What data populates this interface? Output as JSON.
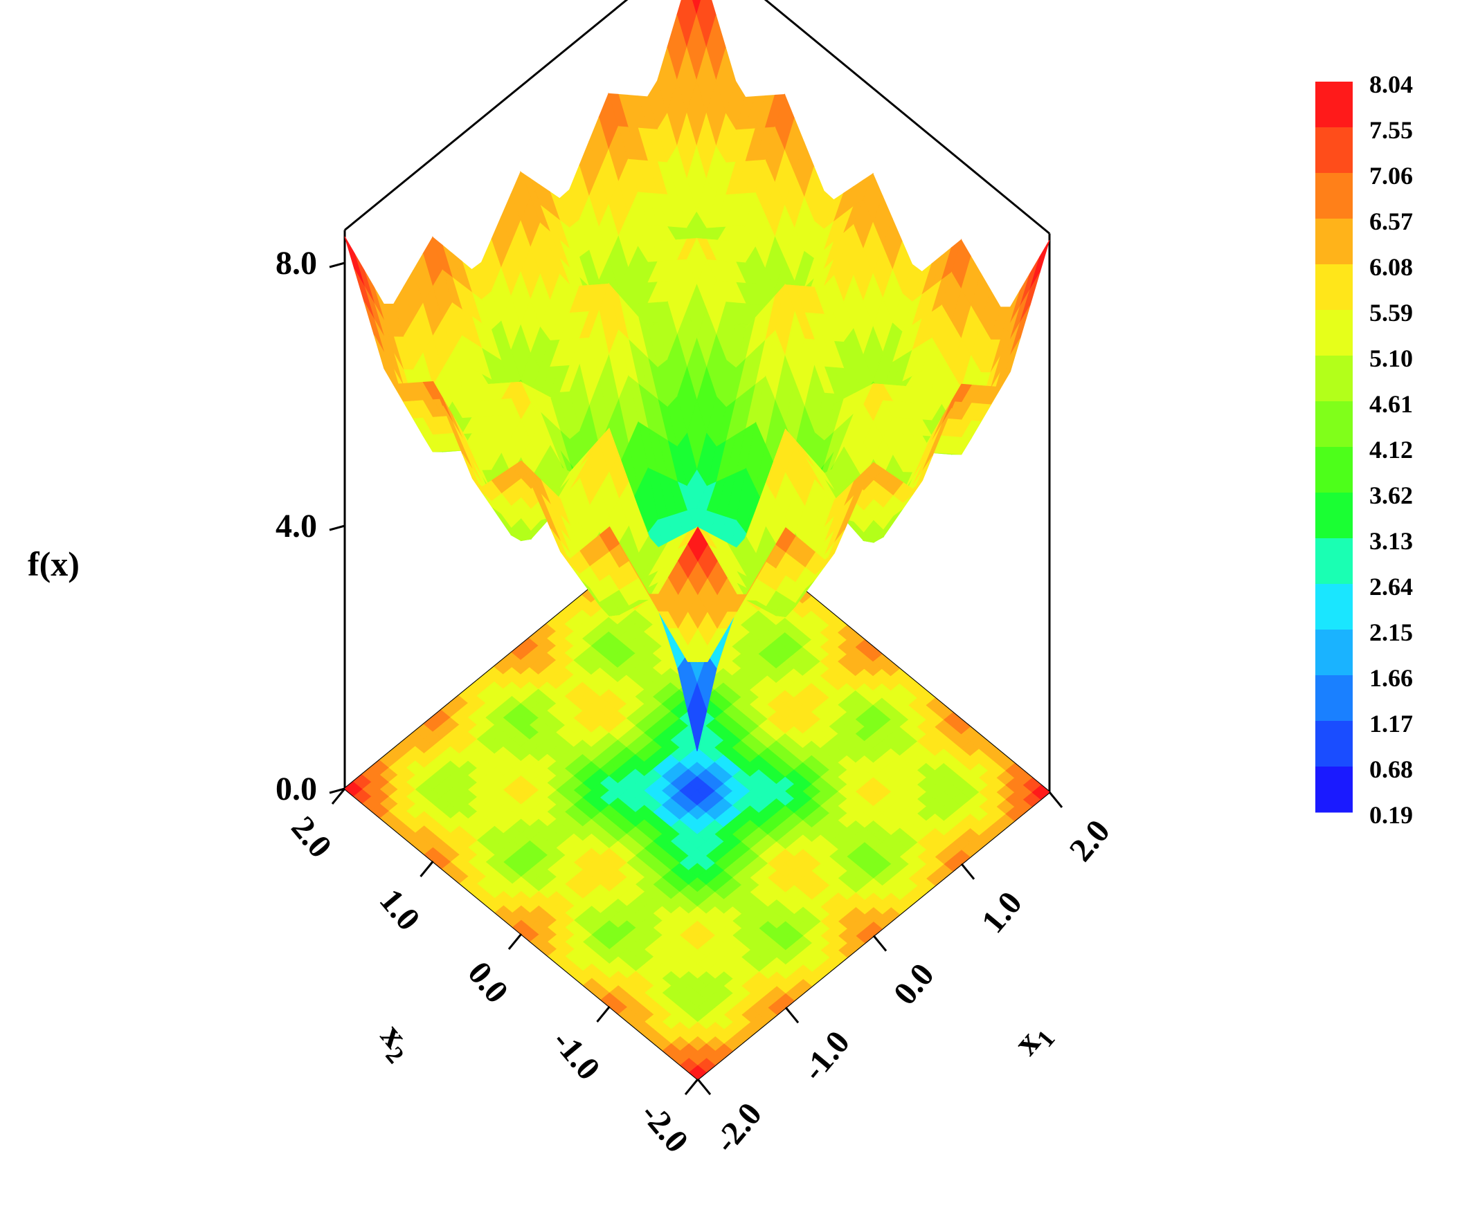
{
  "chart_data": {
    "type": "surface",
    "zlabel": "f(x)",
    "xlabel": "x",
    "xlabel_sub": "1",
    "ylabel": "x",
    "ylabel_sub": "2",
    "x1_range": [
      -2.0,
      2.0
    ],
    "x2_range": [
      -2.0,
      2.0
    ],
    "zlim": [
      0.0,
      8.0
    ],
    "x1_ticks": [
      "-2.0",
      "-1.0",
      "0.0",
      "1.0",
      "2.0"
    ],
    "x2_ticks": [
      "-2.0",
      "-1.0",
      "0.0",
      "1.0",
      "2.0"
    ],
    "z_ticks": [
      "0.0",
      "4.0",
      "8.0"
    ],
    "colorbar_levels": [
      "8.04",
      "7.55",
      "7.06",
      "6.57",
      "6.08",
      "5.59",
      "5.10",
      "4.61",
      "4.12",
      "3.62",
      "3.13",
      "2.64",
      "2.15",
      "1.66",
      "1.17",
      "0.68",
      "0.19"
    ],
    "colorbar_colors": [
      "#ff1a1a",
      "#ff4d1a",
      "#ff8019",
      "#ffb31a",
      "#ffe61a",
      "#e6ff1a",
      "#b3ff1a",
      "#80ff1a",
      "#4dff1a",
      "#1aff33",
      "#1affb3",
      "#1ae6ff",
      "#1ab3ff",
      "#1a80ff",
      "#1a4dff",
      "#1a1aff"
    ],
    "surface_grid": {
      "x1": [
        -2.0,
        -1.5,
        -1.0,
        -0.5,
        0.0,
        0.5,
        1.0,
        1.5,
        2.0
      ],
      "x2": [
        -2.0,
        -1.5,
        -1.0,
        -0.5,
        0.0,
        0.5,
        1.0,
        1.5,
        2.0
      ],
      "z": [
        [
          8.0,
          6.3,
          6.9,
          5.8,
          6.8,
          5.8,
          6.9,
          6.3,
          8.0
        ],
        [
          6.3,
          4.6,
          5.2,
          4.3,
          5.6,
          4.3,
          5.2,
          4.6,
          6.3
        ],
        [
          6.9,
          5.2,
          5.8,
          4.9,
          6.2,
          4.9,
          5.8,
          5.2,
          6.9
        ],
        [
          5.8,
          4.3,
          4.9,
          2.8,
          3.6,
          2.8,
          4.9,
          4.3,
          5.8
        ],
        [
          6.8,
          5.6,
          6.2,
          3.6,
          0.2,
          3.6,
          6.2,
          5.6,
          6.8
        ],
        [
          5.8,
          4.3,
          4.9,
          2.8,
          3.6,
          2.8,
          4.9,
          4.3,
          5.8
        ],
        [
          6.9,
          5.2,
          5.8,
          4.9,
          6.2,
          4.9,
          5.8,
          5.2,
          6.9
        ],
        [
          6.3,
          4.6,
          5.2,
          4.3,
          5.6,
          4.3,
          5.2,
          4.6,
          6.3
        ],
        [
          8.0,
          6.3,
          6.9,
          5.8,
          6.8,
          5.8,
          6.9,
          6.3,
          8.0
        ]
      ]
    },
    "global_minimum": {
      "x1": 0.0,
      "x2": 0.0,
      "f": 0.19
    },
    "grid": false,
    "legend": "colorbar right"
  }
}
